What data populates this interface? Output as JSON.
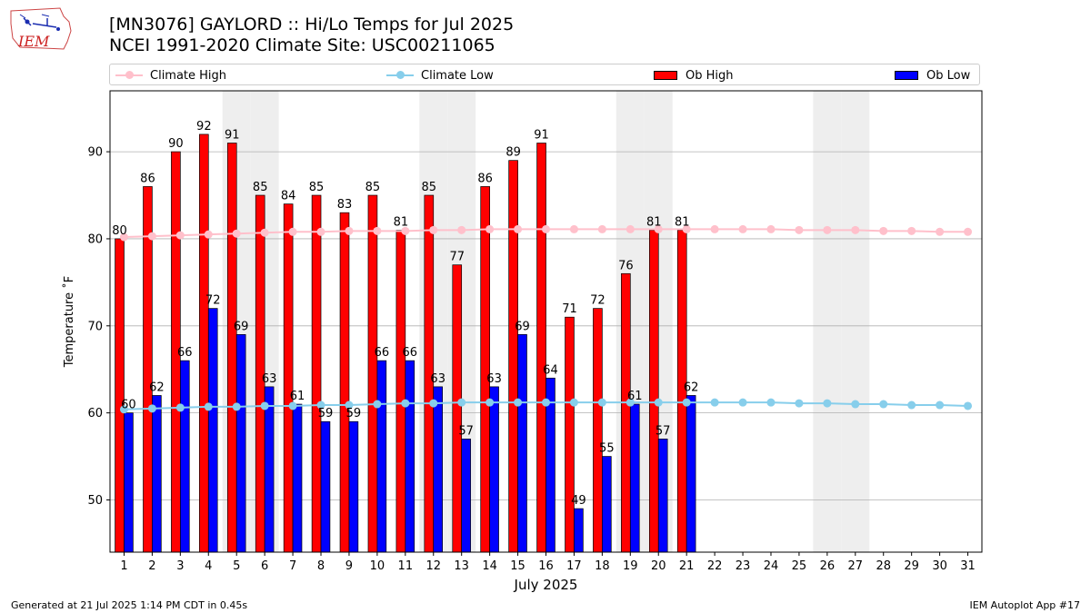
{
  "header": {
    "title_line1": "[MN3076] GAYLORD :: Hi/Lo Temps for Jul 2025",
    "title_line2": "NCEI 1991-2020 Climate Site: USC00211065"
  },
  "logo": {
    "text": "IEM",
    "icon": "iem-logo-icon"
  },
  "legend": {
    "climate_high": "Climate High",
    "climate_low": "Climate Low",
    "ob_high": "Ob High",
    "ob_low": "Ob Low"
  },
  "footer": {
    "generated": "Generated at 21 Jul 2025 1:14 PM CDT in 0.45s",
    "app": "IEM Autoplot App #17"
  },
  "colors": {
    "climate_high": "#ffc0cb",
    "climate_low": "#87ceeb",
    "ob_high": "#ff0000",
    "ob_low": "#0000ff",
    "weekend_shade": "#eeeeee",
    "grid": "#b0b0b0"
  },
  "chart_data": {
    "type": "bar",
    "xlabel": "July 2025",
    "ylabel": "Temperature ˚F",
    "xlim": [
      0.5,
      31.5
    ],
    "ylim": [
      44,
      97
    ],
    "yticks": [
      50,
      60,
      70,
      80,
      90
    ],
    "y_grid": true,
    "legend_position": "top",
    "days": [
      1,
      2,
      3,
      4,
      5,
      6,
      7,
      8,
      9,
      10,
      11,
      12,
      13,
      14,
      15,
      16,
      17,
      18,
      19,
      20,
      21,
      22,
      23,
      24,
      25,
      26,
      27,
      28,
      29,
      30,
      31
    ],
    "shaded_days": [
      5,
      6,
      12,
      13,
      19,
      20,
      26,
      27
    ],
    "series": [
      {
        "name": "Ob High",
        "kind": "bar",
        "values": [
          80,
          86,
          90,
          92,
          91,
          85,
          84,
          85,
          83,
          85,
          81,
          85,
          77,
          86,
          89,
          91,
          71,
          72,
          76,
          81,
          81
        ]
      },
      {
        "name": "Ob Low",
        "kind": "bar",
        "values": [
          60,
          62,
          66,
          72,
          69,
          63,
          61,
          59,
          59,
          66,
          66,
          63,
          57,
          63,
          69,
          64,
          49,
          55,
          61,
          57,
          62
        ]
      },
      {
        "name": "Climate High",
        "kind": "line",
        "values": [
          80.2,
          80.3,
          80.4,
          80.5,
          80.6,
          80.7,
          80.8,
          80.8,
          80.9,
          80.9,
          80.9,
          81.0,
          81.0,
          81.1,
          81.1,
          81.1,
          81.1,
          81.1,
          81.1,
          81.1,
          81.1,
          81.1,
          81.1,
          81.1,
          81.0,
          81.0,
          81.0,
          80.9,
          80.9,
          80.8,
          80.8
        ]
      },
      {
        "name": "Climate Low",
        "kind": "line",
        "values": [
          60.4,
          60.5,
          60.6,
          60.7,
          60.7,
          60.8,
          60.8,
          60.9,
          60.9,
          61.0,
          61.1,
          61.1,
          61.2,
          61.2,
          61.2,
          61.2,
          61.2,
          61.2,
          61.2,
          61.2,
          61.2,
          61.2,
          61.2,
          61.2,
          61.1,
          61.1,
          61.0,
          61.0,
          60.9,
          60.9,
          60.8
        ]
      }
    ]
  }
}
